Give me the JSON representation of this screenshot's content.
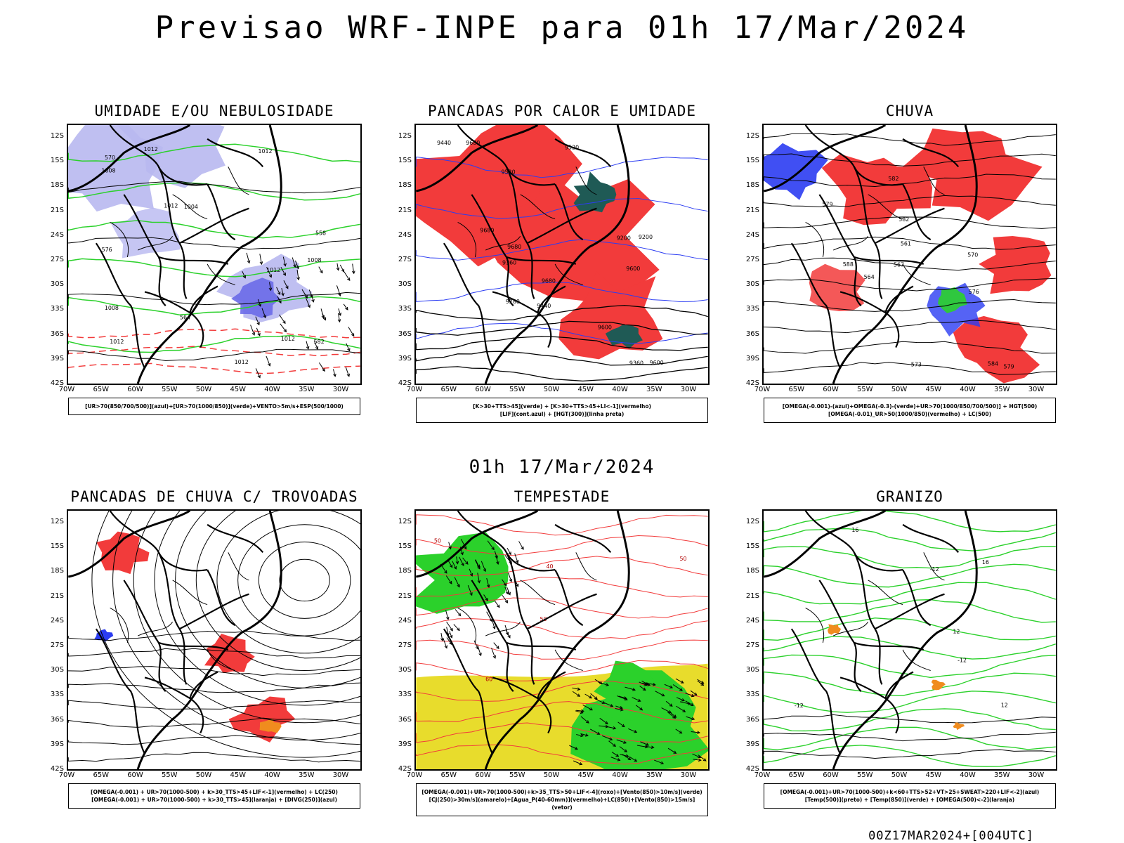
{
  "page": {
    "title": "Previsao WRF-INPE  para 01h 17/Mar/2024",
    "subtitle": "01h 17/Mar/2024",
    "footer": "00Z17MAR2024+[004UTC]"
  },
  "axes": {
    "lat_ticks": [
      "12S",
      "15S",
      "18S",
      "21S",
      "24S",
      "27S",
      "30S",
      "33S",
      "36S",
      "39S",
      "42S"
    ],
    "lon_ticks": [
      "70W",
      "65W",
      "60W",
      "55W",
      "50W",
      "45W",
      "40W",
      "35W",
      "30W"
    ]
  },
  "colors": {
    "red": "#f23b3b",
    "green": "#2bd12b",
    "blue": "#2b3cf2",
    "lavender": "#b8b8f0",
    "darkteal": "#1f5a55",
    "yellow": "#e8dc2c",
    "orange": "#f08c1e"
  },
  "panels": [
    {
      "title": "UMIDADE E/OU NEBULOSIDADE",
      "legend": [
        "[UR>70(850/700/500)](azul)+[UR>70(1000/850)](verde)+VENTO>5m/s+ESP(500/1000)"
      ],
      "contour_labels": [
        "1012",
        "1008",
        "1012",
        "1012",
        "1004",
        "1012",
        "1008",
        "1012",
        "1012",
        "1012",
        "1008",
        "576",
        "570",
        "582",
        "564",
        "558"
      ]
    },
    {
      "title": "PANCADAS POR CALOR E UMIDADE",
      "legend": [
        "[K>30+TTS>45](verde) + [K>30+TTS>45+LI<-1](vermelho)",
        "[LIF](cont.azul) + [HGT(300)](linha preta)"
      ],
      "contour_labels": [
        "9680",
        "9680",
        "9680",
        "9600",
        "9600",
        "9520",
        "9440",
        "9360",
        "9280",
        "9200",
        "9200",
        "9520",
        "9440",
        "9360",
        "9680",
        "9600"
      ]
    },
    {
      "title": "CHUVA",
      "legend": [
        "[OMEGA(-0.001)-(azul)+OMEGA(-0.3)-(verde)+UR>70(1000/850/700/500)] + HGT(500)",
        "[OMEGA(-0.01)_UR>50(1000/850)(vermelho) + LC(500)"
      ],
      "contour_labels": [
        "582",
        "579",
        "576",
        "573",
        "570",
        "567",
        "564",
        "561",
        "584",
        "588",
        "582",
        "579"
      ]
    },
    {
      "title": "PANCADAS DE CHUVA C/ TROVOADAS",
      "legend": [
        "[OMEGA(-0.001) + UR>70(1000-500) + k>30_TTS>45+LIF<-1](vermelho) + LC(250)",
        "[OMEGA(-0.001) + UR>70(1000-500) + k>30_TTS>45](laranja) + [DIVG(250)](azul)"
      ],
      "contour_labels": []
    },
    {
      "title": "TEMPESTADE",
      "legend": [
        "[OMEGA(-0.001)+UR>70(1000-500)+k>35_TTS>50+LIF<-4](roxo)+[Vento(850)>10m/s](verde)",
        "[CJ(250)>30m/s](amarelo)+[Agua_P(40-60mm)](vermelho)+LC(850)+[Vento(850)>15m/s](vetor)"
      ],
      "contour_labels": [
        "50",
        "50",
        "40",
        "60",
        "50"
      ]
    },
    {
      "title": "GRANIZO",
      "legend": [
        "[OMEGA(-0.001)+UR>70(1000-500)+k<60+TTS>52+VT>25+SWEAT>220+LIF<-2](azul)",
        "[Temp(500)](preto) + [Temp(850)](verde) + [OMEGA(500)<-2](laranja)"
      ],
      "contour_labels": [
        "-12",
        "-12",
        "-12",
        "12",
        "12",
        "16",
        "16"
      ]
    }
  ]
}
